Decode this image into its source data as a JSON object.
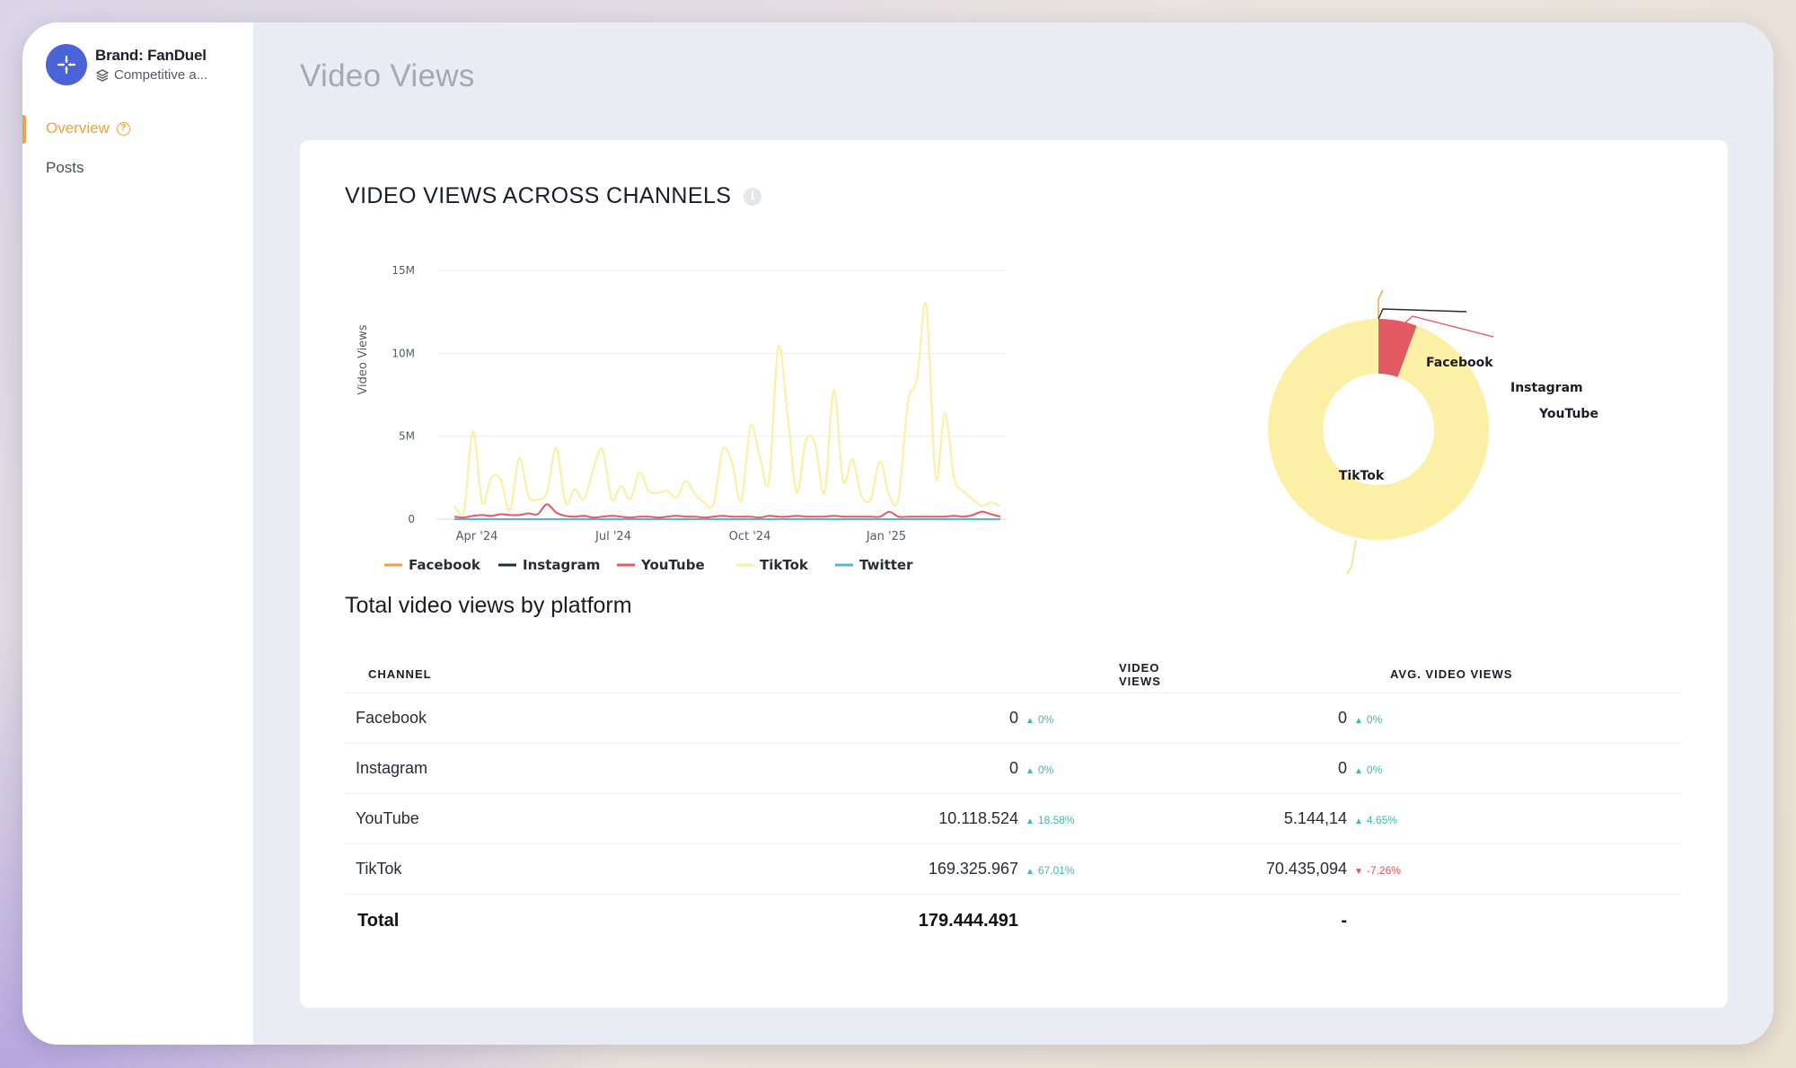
{
  "sidebar": {
    "brand_title": "Brand: FanDuel",
    "brand_subtitle": "Competitive a...",
    "items": [
      {
        "label": "Overview",
        "active": true
      },
      {
        "label": "Posts",
        "active": false
      }
    ]
  },
  "page": {
    "title": "Video Views"
  },
  "card": {
    "title": "VIDEO VIEWS ACROSS CHANNELS",
    "table_title": "Total video views by platform"
  },
  "chart_data": [
    {
      "type": "line",
      "ylabel": "Video Views",
      "ylim": [
        0,
        15000000
      ],
      "y_ticks": [
        "0",
        "5M",
        "10M",
        "15M"
      ],
      "x_ticks": [
        "Apr '24",
        "Jul '24",
        "Oct '24",
        "Jan '25"
      ],
      "legend": "bottom",
      "grid": true,
      "series": [
        {
          "name": "Facebook",
          "color": "#f3a23b",
          "values": [
            0,
            0,
            0,
            0,
            0,
            0,
            0,
            0,
            0,
            0,
            0,
            0,
            0,
            0,
            0,
            0,
            0,
            0,
            0,
            0,
            0,
            0,
            0,
            0,
            0,
            0,
            0,
            0,
            0,
            0,
            0,
            0,
            0,
            0,
            0,
            0,
            0,
            0,
            0,
            0,
            0,
            0,
            0,
            0,
            0,
            0,
            0,
            0,
            0,
            0,
            0,
            0,
            0,
            0,
            0,
            0,
            0,
            0,
            0,
            0
          ]
        },
        {
          "name": "Instagram",
          "color": "#262a3d",
          "values": [
            0,
            0,
            0,
            0,
            0,
            0,
            0,
            0,
            0,
            0,
            0,
            0,
            0,
            0,
            0,
            0,
            0,
            0,
            0,
            0,
            0,
            0,
            0,
            0,
            0,
            0,
            0,
            0,
            0,
            0,
            0,
            0,
            0,
            0,
            0,
            0,
            0,
            0,
            0,
            0,
            0,
            0,
            0,
            0,
            0,
            0,
            0,
            0,
            0,
            0,
            0,
            0,
            0,
            0,
            0,
            0,
            0,
            0,
            0,
            0
          ]
        },
        {
          "name": "YouTube",
          "color": "#e45a62",
          "values": [
            150000,
            100000,
            200000,
            250000,
            200000,
            300000,
            250000,
            250000,
            350000,
            300000,
            900000,
            400000,
            200000,
            150000,
            200000,
            100000,
            150000,
            200000,
            150000,
            100000,
            150000,
            150000,
            100000,
            150000,
            200000,
            150000,
            150000,
            100000,
            150000,
            200000,
            150000,
            150000,
            150000,
            100000,
            200000,
            150000,
            150000,
            200000,
            150000,
            150000,
            150000,
            200000,
            150000,
            150000,
            150000,
            150000,
            150000,
            450000,
            150000,
            150000,
            150000,
            150000,
            150000,
            150000,
            200000,
            150000,
            250000,
            450000,
            300000,
            150000
          ]
        },
        {
          "name": "TikTok",
          "color": "#fcefa6",
          "values": [
            800000,
            300000,
            5300000,
            1000000,
            2500000,
            2400000,
            500000,
            3700000,
            1400000,
            1200000,
            1600000,
            4300000,
            1000000,
            1800000,
            1200000,
            3000000,
            4200000,
            1200000,
            2000000,
            1200000,
            2800000,
            1700000,
            1600000,
            1700000,
            1300000,
            2300000,
            1500000,
            1000000,
            900000,
            4200000,
            3400000,
            1100000,
            5600000,
            3800000,
            2300000,
            10400000,
            6300000,
            1600000,
            4800000,
            4500000,
            1600000,
            7800000,
            2300000,
            3600000,
            1400000,
            1200000,
            3500000,
            1400000,
            1300000,
            7000000,
            8500000,
            12900000,
            2500000,
            6400000,
            2500000,
            1700000,
            1200000,
            800000,
            1000000,
            800000
          ]
        },
        {
          "name": "Twitter",
          "color": "#5ab7c8",
          "values": [
            0,
            0,
            0,
            0,
            0,
            0,
            0,
            0,
            0,
            0,
            0,
            0,
            0,
            0,
            0,
            0,
            0,
            0,
            0,
            0,
            0,
            0,
            0,
            0,
            0,
            0,
            0,
            0,
            0,
            0,
            0,
            0,
            0,
            0,
            0,
            0,
            0,
            0,
            0,
            0,
            0,
            0,
            0,
            0,
            0,
            0,
            0,
            0,
            0,
            0,
            0,
            0,
            0,
            0,
            0,
            0,
            0,
            0,
            0,
            0
          ]
        }
      ]
    },
    {
      "type": "pie",
      "donut": true,
      "slices": [
        {
          "label": "Facebook",
          "value": 0,
          "color": "#f3a23b"
        },
        {
          "label": "Instagram",
          "value": 0,
          "color": "#262a3d"
        },
        {
          "label": "YouTube",
          "value": 10118524,
          "color": "#e45a62"
        },
        {
          "label": "TikTok",
          "value": 169325967,
          "color": "#fcefa6"
        }
      ]
    }
  ],
  "table": {
    "headers": [
      "CHANNEL",
      "VIDEO VIEWS",
      "AVG. VIDEO VIEWS"
    ],
    "rows": [
      {
        "channel": "Facebook",
        "views": "0",
        "views_change": "0%",
        "views_dir": "up",
        "avg": "0",
        "avg_change": "0%",
        "avg_dir": "up"
      },
      {
        "channel": "Instagram",
        "views": "0",
        "views_change": "0%",
        "views_dir": "up",
        "avg": "0",
        "avg_change": "0%",
        "avg_dir": "up"
      },
      {
        "channel": "YouTube",
        "views": "10.118.524",
        "views_change": "18.58%",
        "views_dir": "up",
        "avg": "5.144,14",
        "avg_change": "4.65%",
        "avg_dir": "up"
      },
      {
        "channel": "TikTok",
        "views": "169.325.967",
        "views_change": "67.01%",
        "views_dir": "up",
        "avg": "70.435,094",
        "avg_change": "-7.26%",
        "avg_dir": "down"
      }
    ],
    "total": {
      "label": "Total",
      "views": "179.444.491",
      "avg": "-"
    }
  },
  "colors": {
    "accent": "#f0a23c",
    "brand": "#4a63d6",
    "positive": "#3fb9b0",
    "negative": "#e2525c"
  }
}
